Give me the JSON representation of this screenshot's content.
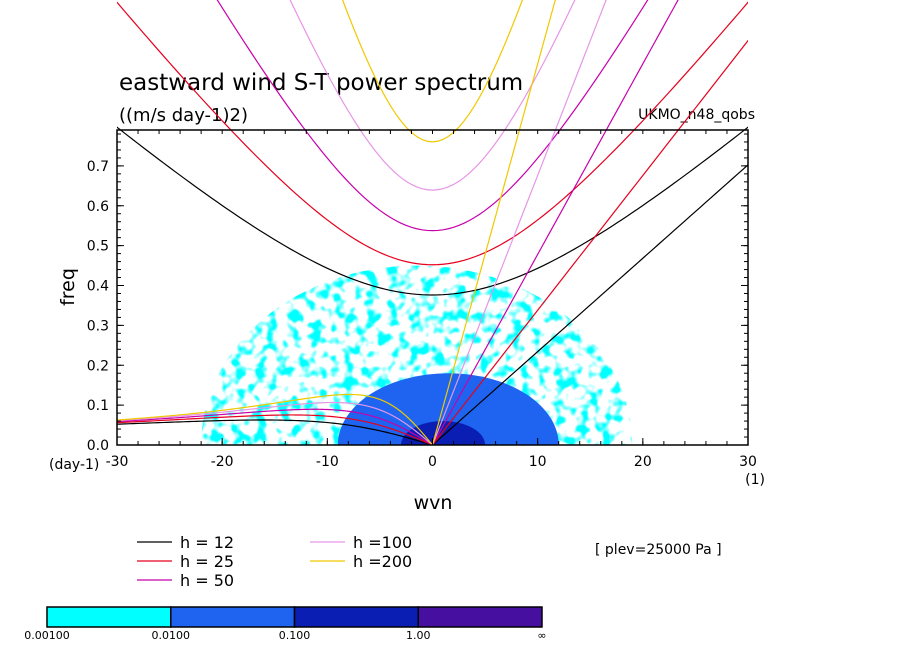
{
  "chart_data": {
    "type": "contour",
    "title": "eastward wind S-T power spectrum",
    "units": "((m/s day-1)2)",
    "dataset": "UKMO_n48_qobs",
    "xlabel": "wvn",
    "ylabel": "freq",
    "x_unit": "(1)",
    "y_unit": "(day-1)",
    "xlim": [
      -30,
      30
    ],
    "ylim": [
      0,
      0.79
    ],
    "x_ticks": [
      "-30",
      "-20",
      "-10",
      "0",
      "10",
      "20",
      "30"
    ],
    "y_ticks": [
      "0.0",
      "0.1",
      "0.2",
      "0.3",
      "0.4",
      "0.5",
      "0.6",
      "0.7"
    ],
    "level_note": "[ plev=25000 Pa ]",
    "colorbar": {
      "labels": [
        "0.00100",
        "0.0100",
        "0.100",
        "1.00",
        "∞"
      ],
      "colors": [
        "#00ffff",
        "#1e64f0",
        "#0a1eb4",
        "#460fa0"
      ]
    },
    "dispersion_curves": [
      {
        "label": "h = 12",
        "color": "#000000",
        "equivalent_depth_m": 12
      },
      {
        "label": "h = 25",
        "color": "#e6001e",
        "equivalent_depth_m": 25
      },
      {
        "label": "h = 50",
        "color": "#c800aa",
        "equivalent_depth_m": 50
      },
      {
        "label": "h =100",
        "color": "#e696e6",
        "equivalent_depth_m": 100
      },
      {
        "label": "h =200",
        "color": "#f0c800",
        "equivalent_depth_m": 200
      }
    ],
    "power_regions": [
      {
        "level": 0,
        "x_range": [
          -22,
          19
        ],
        "y_range": [
          0,
          0.45
        ]
      },
      {
        "level": 1,
        "x_range": [
          -9,
          12
        ],
        "y_range": [
          0,
          0.18
        ]
      },
      {
        "level": 2,
        "x_range": [
          -3,
          5
        ],
        "y_range": [
          0,
          0.06
        ]
      }
    ]
  }
}
